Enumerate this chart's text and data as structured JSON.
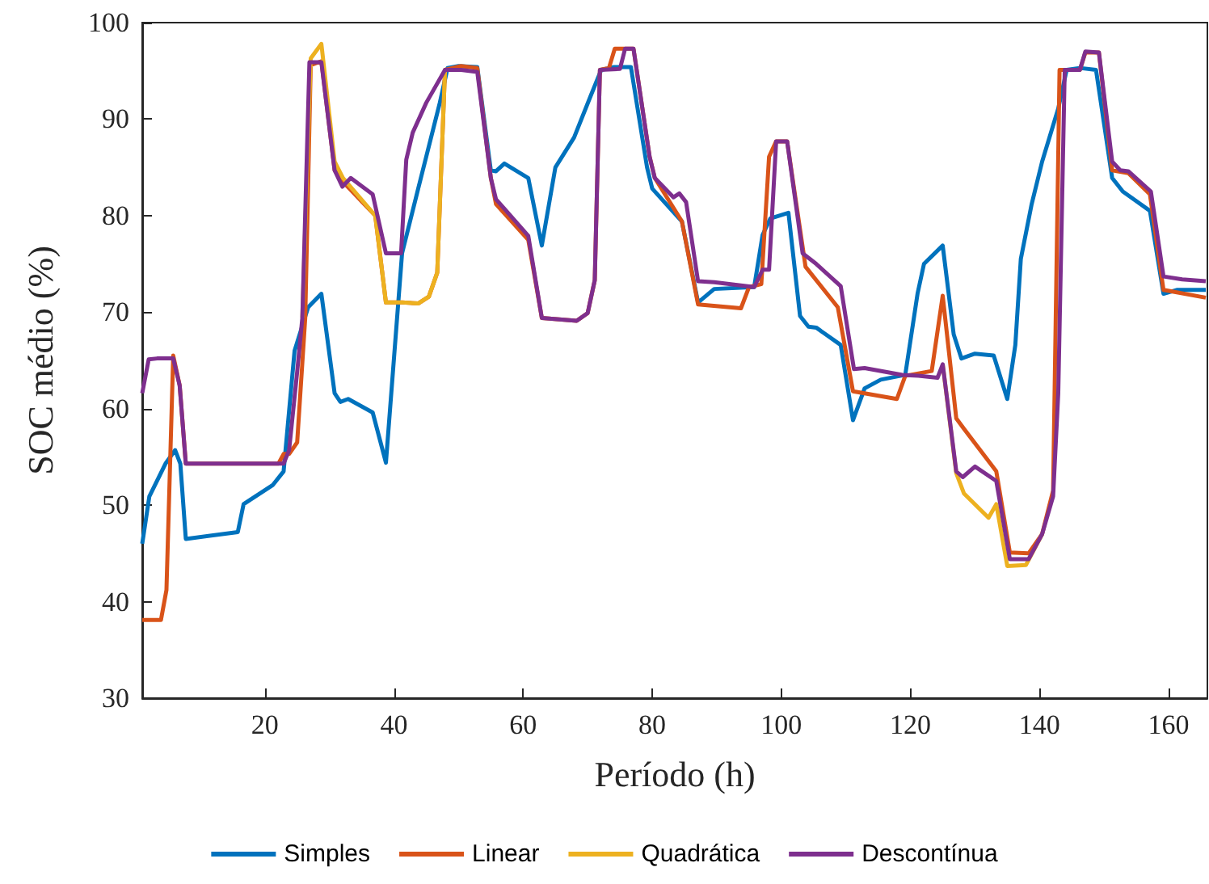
{
  "chart_data": {
    "type": "line",
    "xlabel": "Período (h)",
    "ylabel": "SOC médio (%)",
    "xlim": [
      1,
      166
    ],
    "xticks": [
      20,
      40,
      60,
      80,
      100,
      120,
      140,
      160
    ],
    "ylim": [
      30,
      100
    ],
    "yticks": [
      30,
      40,
      50,
      60,
      70,
      80,
      90,
      100
    ],
    "grid": false,
    "legend": "bottom",
    "series": [
      {
        "name": "Simples",
        "color": "#0072bd",
        "x": [
          1,
          2.1,
          4.6,
          6.1,
          6.9,
          7.75,
          15.8,
          16.7,
          21.25,
          22.9,
          24.6,
          26.7,
          28.75,
          30.8,
          31.7,
          32.9,
          36.7,
          38.75,
          41.25,
          43.75,
          47.1,
          48.3,
          50,
          52.9,
          55,
          55.8,
          57.1,
          60.8,
          62.9,
          65,
          67.9,
          70.4,
          72.1,
          74.1,
          76.7,
          79.2,
          80,
          84.6,
          87.1,
          89.6,
          95.8,
          97.1,
          98.3,
          101.1,
          102.9,
          104.2,
          105.4,
          109.2,
          111.1,
          112.9,
          115.4,
          119.2,
          121.1,
          122.1,
          125,
          126.7,
          127.9,
          130,
          132.9,
          135,
          136.25,
          137.1,
          138.75,
          140.4,
          142.9,
          144.2,
          146.25,
          148.75,
          151.25,
          152.9,
          157.1,
          159.2,
          161.25,
          165.75
        ],
        "values": [
          46,
          50.9,
          54.3,
          55.7,
          54.3,
          46.5,
          47.2,
          50.1,
          52.1,
          53.5,
          66,
          70.5,
          71.9,
          61.6,
          60.7,
          61,
          59.6,
          54.4,
          76.1,
          82.8,
          91.7,
          95.3,
          95.5,
          95.4,
          84.7,
          84.6,
          85.4,
          83.9,
          76.9,
          85,
          88.1,
          92.3,
          95.1,
          95.4,
          95.4,
          85,
          82.8,
          79.4,
          71,
          72.4,
          72.6,
          78,
          79.7,
          80.3,
          69.6,
          68.5,
          68.4,
          66.6,
          58.8,
          62.1,
          63,
          63.5,
          71.9,
          75,
          76.9,
          67.7,
          65.2,
          65.7,
          65.5,
          61,
          66.6,
          75.5,
          81.1,
          85.6,
          91.1,
          95.1,
          95.3,
          95.1,
          83.9,
          82.5,
          80.5,
          71.9,
          72.3,
          72.3
        ]
      },
      {
        "name": "Linear",
        "color": "#d95319",
        "x": [
          1,
          3.9,
          4.75,
          5.8,
          6.8,
          7.75,
          22.1,
          22.9,
          23.75,
          25,
          26.25,
          27.1,
          28.75,
          30.8,
          32.1,
          37.1,
          38.75,
          41.25,
          43.75,
          45.4,
          46.7,
          47.9,
          50.4,
          52.9,
          55,
          55.8,
          60.8,
          62.9,
          68.3,
          70,
          71.1,
          71.9,
          73.3,
          74.2,
          77.1,
          79.6,
          80.4,
          84.6,
          87.1,
          93.75,
          95,
          96.9,
          98.1,
          99.2,
          100.9,
          103.75,
          108.75,
          111.1,
          117.9,
          119.2,
          123.3,
          125,
          127.1,
          128.3,
          133.3,
          135.4,
          138.3,
          140.4,
          142.1,
          143.1,
          146.25,
          147.1,
          149.2,
          151.25,
          153.75,
          157.1,
          159.2,
          165.75
        ],
        "values": [
          38.1,
          38.1,
          41.2,
          65.5,
          62.4,
          54.3,
          54.3,
          55.3,
          55.3,
          56.5,
          69.4,
          95.6,
          96,
          84.7,
          83.5,
          80,
          71,
          71,
          70.9,
          71.6,
          74.1,
          95.1,
          95.5,
          95.3,
          83.9,
          81.2,
          77.5,
          69.4,
          69.1,
          69.9,
          73.3,
          95.1,
          95.3,
          97.3,
          97.3,
          86.1,
          83.9,
          79.4,
          70.8,
          70.4,
          72.6,
          72.9,
          86.1,
          87.7,
          87.7,
          74.7,
          70.5,
          61.8,
          61,
          63.4,
          63.9,
          71.7,
          59,
          57.9,
          53.5,
          45.1,
          45,
          47,
          51.5,
          95.1,
          95.1,
          96.9,
          96.9,
          84.7,
          84.4,
          82.2,
          72.3,
          71.5
        ]
      },
      {
        "name": "Quadrática",
        "color": "#edb120",
        "x": [
          25.8,
          27.1,
          28.75,
          30.8,
          32.1,
          37.1,
          38.75,
          41.25,
          43.75,
          45.4,
          46.7,
          47.9
        ],
        "values": [
          69.4,
          96.3,
          97.8,
          85.6,
          83.9,
          80,
          71,
          71,
          70.9,
          71.6,
          74.1,
          95.1
        ]
      },
      {
        "color": "#edb120",
        "x": [
          125,
          127.1,
          128.3,
          132.1,
          133.3,
          135,
          137.9,
          140.4
        ],
        "values": [
          64.6,
          53.3,
          51.2,
          48.7,
          50.1,
          43.7,
          43.8,
          47
        ]
      },
      {
        "name": "Descontínua",
        "color": "#7e2f8e",
        "x": [
          1,
          2,
          3.3,
          5.8,
          6.8,
          7.75,
          22.9,
          23.75,
          25,
          25.8,
          26.9,
          28.75,
          30.8,
          32,
          33.3,
          36.7,
          38.75,
          41.1,
          41.9,
          42.9,
          45,
          47.9,
          50.4,
          52.9,
          55,
          55.8,
          60.8,
          62.9,
          68.3,
          70,
          71.1,
          71.9,
          75,
          75.8,
          77.1,
          79.6,
          80.4,
          83.3,
          84.2,
          85.25,
          87.1,
          89.6,
          95.8,
          97.1,
          98.1,
          99.2,
          100.9,
          103.3,
          105.4,
          109.2,
          111.25,
          112.9,
          118.75,
          121.25,
          124.2,
          125,
          127.1,
          128.1,
          130,
          133.3,
          135.4,
          138.3,
          140.4,
          142.1,
          142.9,
          143.9,
          146.25,
          147.1,
          149.2,
          151.25,
          152.5,
          153.75,
          157.25,
          159.2,
          162.1,
          165.75
        ],
        "values": [
          61.6,
          65.1,
          65.2,
          65.2,
          62.4,
          54.3,
          54.3,
          55.7,
          63.8,
          69.4,
          95.9,
          95.9,
          84.7,
          83,
          83.9,
          82.2,
          76.1,
          76.1,
          85.8,
          88.6,
          91.7,
          95.1,
          95.1,
          94.9,
          83.9,
          81.7,
          77.9,
          69.4,
          69.1,
          69.9,
          73.3,
          95.1,
          95.2,
          97.3,
          97.3,
          86.1,
          83.9,
          81.9,
          82.3,
          81.4,
          73.2,
          73.1,
          72.6,
          74.4,
          74.4,
          87.7,
          87.7,
          76.1,
          75,
          72.7,
          64.1,
          64.2,
          63.5,
          63.4,
          63.2,
          64.6,
          53.5,
          52.9,
          54,
          52.5,
          44.4,
          44.4,
          47,
          50.9,
          61.6,
          95.1,
          95.1,
          97,
          96.9,
          85.6,
          84.7,
          84.6,
          82.5,
          73.7,
          73.4,
          73.2
        ]
      }
    ]
  }
}
